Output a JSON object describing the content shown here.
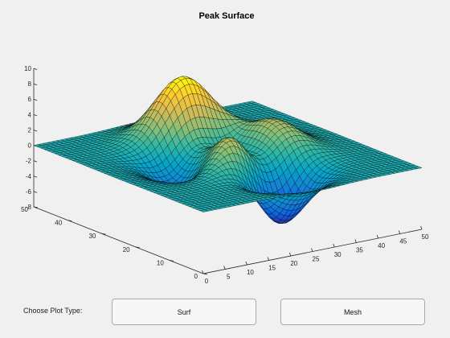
{
  "window": {
    "background": "#f0f0f0"
  },
  "chart_data": {
    "type": "surface",
    "title": "Peak Surface",
    "function": "peaks",
    "grid_size": 49,
    "x_ticks": [
      0,
      5,
      10,
      15,
      20,
      25,
      30,
      35,
      40,
      45,
      50
    ],
    "y_ticks": [
      0,
      10,
      20,
      30,
      40,
      50
    ],
    "z_ticks": [
      -8,
      -6,
      -4,
      -2,
      0,
      2,
      4,
      6,
      8,
      10
    ],
    "xlim": [
      0,
      50
    ],
    "ylim": [
      0,
      50
    ],
    "zlim": [
      -8,
      10
    ],
    "colormap": "parula",
    "colormap_stops": [
      "#352a87",
      "#0f5cdd",
      "#1481d6",
      "#06a4ca",
      "#2eb7a4",
      "#87bf77",
      "#d1bb59",
      "#fec832",
      "#f9fb0e"
    ],
    "grid": false,
    "z_range": [
      -6.55,
      8.1
    ]
  },
  "controls": {
    "label": "Choose Plot Type:",
    "buttons": [
      {
        "label": "Surf"
      },
      {
        "label": "Mesh"
      }
    ]
  }
}
